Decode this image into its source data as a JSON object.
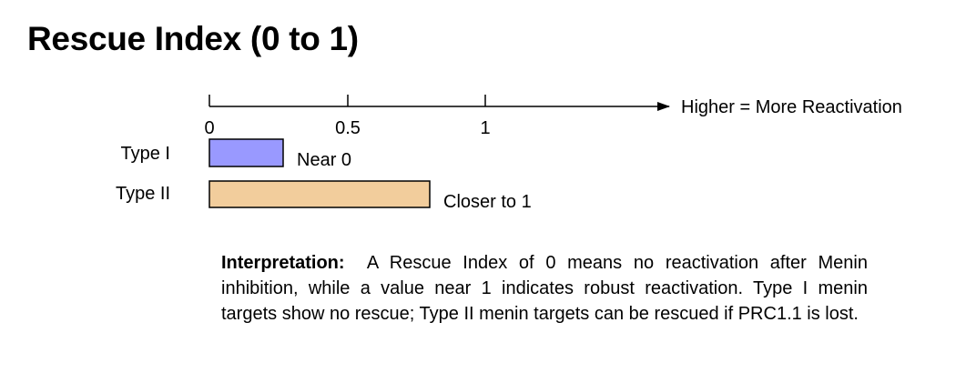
{
  "title": "Rescue Index (0 to 1)",
  "axis": {
    "ticks": [
      {
        "value": 0,
        "label": "0"
      },
      {
        "value": 0.5,
        "label": "0.5"
      },
      {
        "value": 1,
        "label": "1"
      }
    ],
    "arrow_label": "Higher = More Reactivation"
  },
  "bars": [
    {
      "label": "Type I",
      "annotation": "Near 0",
      "color": "#9999ff"
    },
    {
      "label": "Type II",
      "annotation": "Closer to 1",
      "color": "#f2cd9c"
    }
  ],
  "interpretation": {
    "label": "Interpretation:",
    "text": "A Rescue Index of 0 means no reactivation after Menin inhibition, while a value near 1 indicates robust reactivation. Type I menin targets show no rescue; Type II menin targets can be rescued if PRC1.1 is lost."
  }
}
